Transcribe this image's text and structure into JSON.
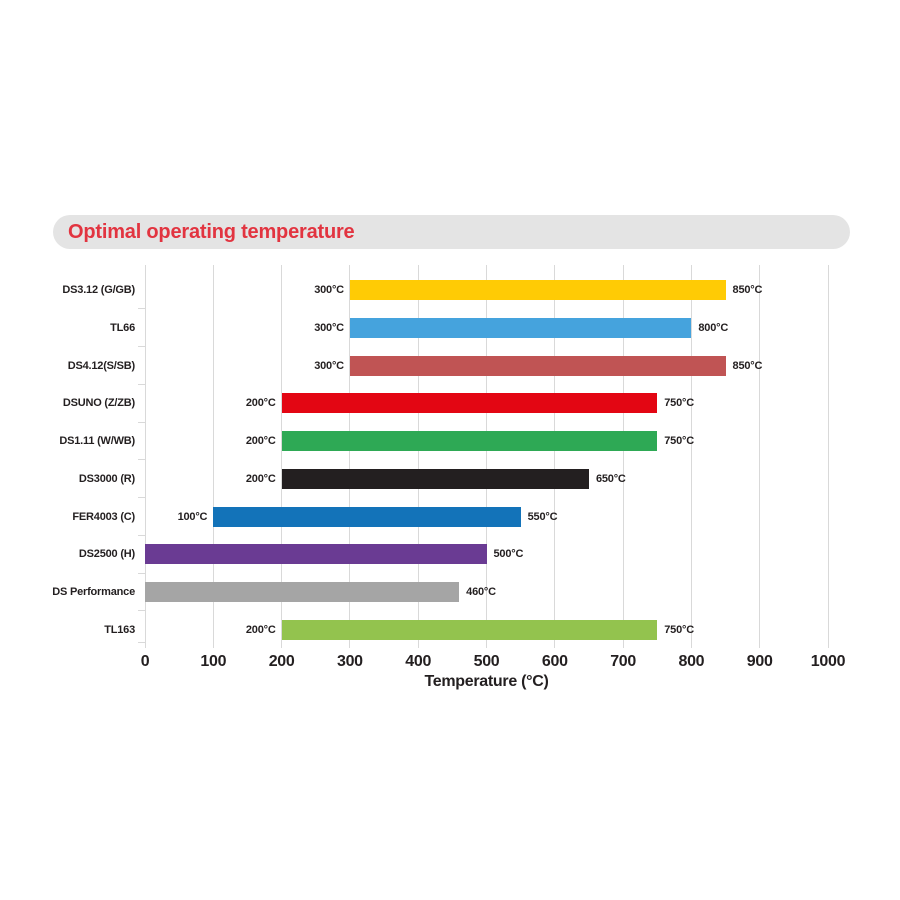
{
  "header": {
    "title": "Optimal operating temperature",
    "title_color": "#e23440",
    "banner_bg": "#e4e4e4"
  },
  "chart_data": {
    "type": "bar",
    "orientation": "horizontal",
    "title": "Optimal operating temperature",
    "xlabel": "Temperature (°C)",
    "ylabel": "",
    "xlim": [
      0,
      1000
    ],
    "xticks": [
      0,
      100,
      200,
      300,
      400,
      500,
      600,
      700,
      800,
      900,
      1000
    ],
    "grid": true,
    "grid_color": "#d9d9d9",
    "text_color": "#231f20",
    "legend": "none",
    "rows": [
      {
        "label": "DS3.12 (G/GB)",
        "start": 300,
        "end": 850,
        "start_label": "300°C",
        "end_label": "850°C",
        "color": "#ffcb05"
      },
      {
        "label": "TL66",
        "start": 300,
        "end": 800,
        "start_label": "300°C",
        "end_label": "800°C",
        "color": "#45a3dd"
      },
      {
        "label": "DS4.12(S/SB)",
        "start": 300,
        "end": 850,
        "start_label": "300°C",
        "end_label": "850°C",
        "color": "#c05454"
      },
      {
        "label": "DSUNO (Z/ZB)",
        "start": 200,
        "end": 750,
        "start_label": "200°C",
        "end_label": "750°C",
        "color": "#e30613"
      },
      {
        "label": "DS1.11 (W/WB)",
        "start": 200,
        "end": 750,
        "start_label": "200°C",
        "end_label": "750°C",
        "color": "#2ea955"
      },
      {
        "label": "DS3000 (R)",
        "start": 200,
        "end": 650,
        "start_label": "200°C",
        "end_label": "650°C",
        "color": "#231f20"
      },
      {
        "label": "FER4003 (C)",
        "start": 100,
        "end": 550,
        "start_label": "100°C",
        "end_label": "550°C",
        "color": "#1373b9"
      },
      {
        "label": "DS2500 (H)",
        "start": 0,
        "end": 500,
        "start_label": "",
        "end_label": "500°C",
        "color": "#6a3b93"
      },
      {
        "label": "DS Performance",
        "start": 0,
        "end": 460,
        "start_label": "",
        "end_label": "460°C",
        "color": "#a5a5a5"
      },
      {
        "label": "TL163",
        "start": 200,
        "end": 750,
        "start_label": "200°C",
        "end_label": "750°C",
        "color": "#93c34e"
      }
    ]
  }
}
